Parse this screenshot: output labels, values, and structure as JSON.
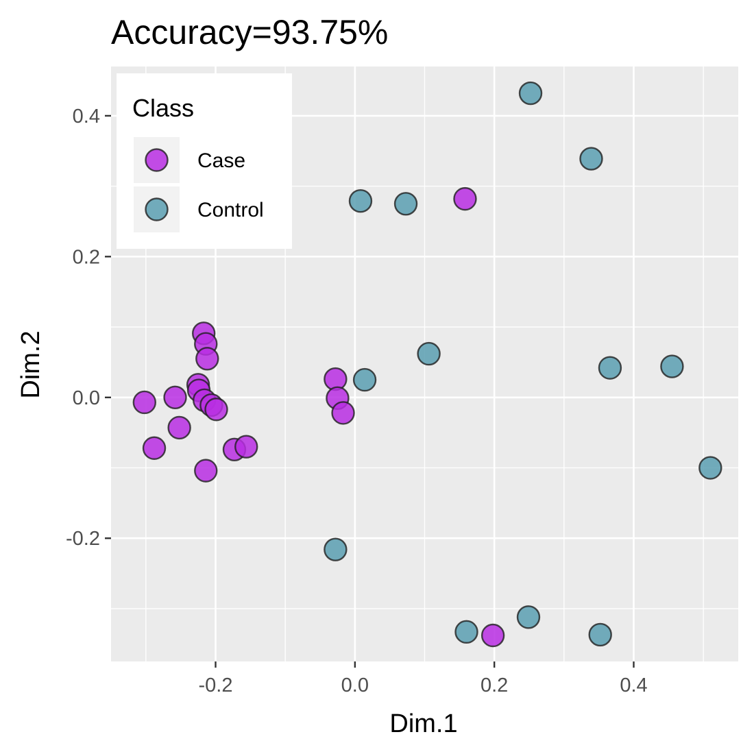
{
  "chart_data": {
    "type": "scatter",
    "title": "Accuracy=93.75%",
    "xlabel": "Dim.1",
    "ylabel": "Dim.2",
    "xlim": [
      -0.35,
      0.55
    ],
    "ylim": [
      -0.375,
      0.47
    ],
    "x_ticks": [
      -0.2,
      0.0,
      0.2,
      0.4
    ],
    "x_tick_labels": [
      "-0.2",
      "0.0",
      "0.2",
      "0.4"
    ],
    "y_ticks": [
      -0.2,
      0.0,
      0.2,
      0.4
    ],
    "y_tick_labels": [
      "-0.2",
      "0.0",
      "0.2",
      "0.4"
    ],
    "grid": true,
    "background": "#ebebeb",
    "legend": {
      "title": "Class",
      "position": "top-left",
      "entries": [
        "Case",
        "Control"
      ]
    },
    "series": [
      {
        "name": "Case",
        "color": "#b92ee3",
        "points": [
          {
            "x": -0.302,
            "y": -0.007
          },
          {
            "x": -0.288,
            "y": -0.072
          },
          {
            "x": -0.258,
            "y": 0.0
          },
          {
            "x": -0.252,
            "y": -0.043
          },
          {
            "x": -0.225,
            "y": 0.018
          },
          {
            "x": -0.224,
            "y": 0.01
          },
          {
            "x": -0.217,
            "y": 0.091
          },
          {
            "x": -0.214,
            "y": 0.076
          },
          {
            "x": -0.212,
            "y": 0.055
          },
          {
            "x": -0.216,
            "y": -0.004
          },
          {
            "x": -0.206,
            "y": -0.011
          },
          {
            "x": -0.199,
            "y": -0.017
          },
          {
            "x": -0.214,
            "y": -0.104
          },
          {
            "x": -0.173,
            "y": -0.074
          },
          {
            "x": -0.156,
            "y": -0.07
          },
          {
            "x": -0.028,
            "y": 0.026
          },
          {
            "x": -0.025,
            "y": -0.001
          },
          {
            "x": -0.017,
            "y": -0.022
          },
          {
            "x": 0.158,
            "y": 0.282
          },
          {
            "x": 0.198,
            "y": -0.338
          }
        ]
      },
      {
        "name": "Control",
        "color": "#5b9fb2",
        "points": [
          {
            "x": 0.252,
            "y": 0.432
          },
          {
            "x": 0.339,
            "y": 0.339
          },
          {
            "x": 0.008,
            "y": 0.279
          },
          {
            "x": 0.073,
            "y": 0.275
          },
          {
            "x": 0.106,
            "y": 0.062
          },
          {
            "x": 0.366,
            "y": 0.042
          },
          {
            "x": 0.455,
            "y": 0.044
          },
          {
            "x": 0.014,
            "y": 0.025
          },
          {
            "x": 0.51,
            "y": -0.1
          },
          {
            "x": -0.028,
            "y": -0.216
          },
          {
            "x": 0.16,
            "y": -0.333
          },
          {
            "x": 0.249,
            "y": -0.312
          },
          {
            "x": 0.352,
            "y": -0.337
          }
        ]
      }
    ]
  }
}
